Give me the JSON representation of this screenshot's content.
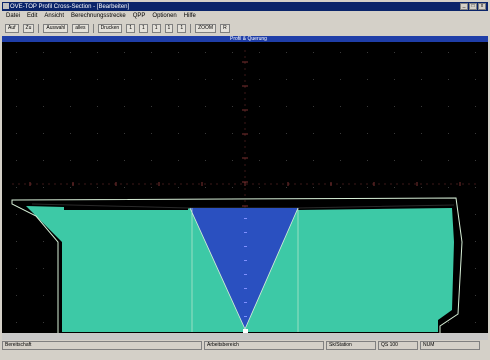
{
  "window": {
    "title": "OVE-TOP  Profil Cross-Section  -  [Bearbeiten]",
    "caption_buttons": [
      "_",
      "□",
      "x"
    ]
  },
  "menu": [
    "Datei",
    "Edit",
    "Ansicht",
    "Berechnungsstrecke",
    "QPP",
    "Optionen",
    "Hilfe"
  ],
  "toolbar": {
    "items": [
      "Auf",
      "Zu",
      "Auswahl",
      "alles",
      "Drucken",
      "1",
      "1",
      "1",
      "1",
      "1",
      "ZOOM",
      "R"
    ]
  },
  "plot": {
    "header": "Profil & Querung",
    "axis_labels_vertical": [
      "10",
      "8",
      "6",
      "4",
      "2",
      "0",
      "-2",
      "-4",
      "-6",
      "-8",
      "-10"
    ],
    "axis_labels_horizontal": [
      "-10",
      "-8",
      "-6",
      "-4",
      "-2",
      "0",
      "2",
      "4",
      "6",
      "8",
      "10"
    ],
    "colors": {
      "background": "#000000",
      "fill": "#3dc9a6",
      "wedge": "#2a50c0",
      "outline": "#d8f0d8",
      "axis_ticks": "#7a3030"
    }
  },
  "status": {
    "left": "Bereitschaft",
    "center": "Arbeitsbereich",
    "right": "NUM",
    "right2": "Sk/Station",
    "right3": "QS 100"
  }
}
